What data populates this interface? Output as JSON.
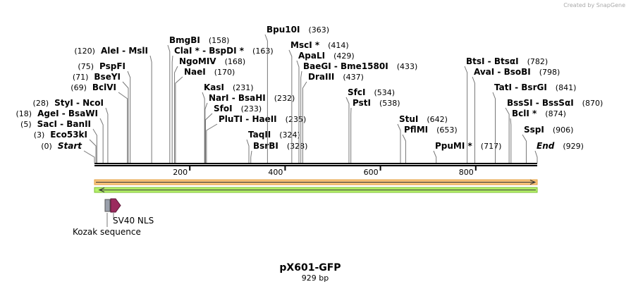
{
  "watermark": "Created by SnapGene",
  "title": "pX601-GFP",
  "subtitle": "929 bp",
  "sequence_length": 929,
  "ruler_ticks": [
    200,
    400,
    600,
    800
  ],
  "sites": [
    {
      "name": "Start",
      "position": 0,
      "position_label": "(0)"
    },
    {
      "name": "Eco53kI",
      "position": 3,
      "position_label": "(3)"
    },
    {
      "name": "SacI  -  BanII",
      "position": 5,
      "position_label": "(5)"
    },
    {
      "name": "AgeI  -  BsaWI",
      "position": 18,
      "position_label": "(18)"
    },
    {
      "name": "StyI  -  NcoI",
      "position": 28,
      "position_label": "(28)"
    },
    {
      "name": "BclVI",
      "position": 69,
      "position_label": "(69)"
    },
    {
      "name": "BseYI",
      "position": 71,
      "position_label": "(71)"
    },
    {
      "name": "PspFI",
      "position": 75,
      "position_label": "(75)"
    },
    {
      "name": "AleI  -  MslI",
      "position": 120,
      "position_label": "(120)"
    },
    {
      "name": "BmgBI",
      "position": 158,
      "position_label": "(158)"
    },
    {
      "name": "ClaI *  -  BspDI *",
      "position": 163,
      "position_label": "(163)"
    },
    {
      "name": "NgoMIV",
      "position": 168,
      "position_label": "(168)"
    },
    {
      "name": "NaeI",
      "position": 170,
      "position_label": "(170)"
    },
    {
      "name": "KasI",
      "position": 231,
      "position_label": "(231)"
    },
    {
      "name": "NarI  -  BsaHI",
      "position": 232,
      "position_label": "(232)"
    },
    {
      "name": "SfoI",
      "position": 233,
      "position_label": "(233)"
    },
    {
      "name": "PluTI  -  HaeII",
      "position": 235,
      "position_label": "(235)"
    },
    {
      "name": "TaqII",
      "position": 324,
      "position_label": "(324)"
    },
    {
      "name": "BsrBI",
      "position": 328,
      "position_label": "(328)"
    },
    {
      "name": "Bpu10I",
      "position": 363,
      "position_label": "(363)"
    },
    {
      "name": "MscI *",
      "position": 414,
      "position_label": "(414)"
    },
    {
      "name": "ApaLI",
      "position": 429,
      "position_label": "(429)"
    },
    {
      "name": "BaeGI  -  Bme1580I",
      "position": 433,
      "position_label": "(433)"
    },
    {
      "name": "DraIII",
      "position": 437,
      "position_label": "(437)"
    },
    {
      "name": "SfcI",
      "position": 534,
      "position_label": "(534)"
    },
    {
      "name": "PstI",
      "position": 538,
      "position_label": "(538)"
    },
    {
      "name": "StuI",
      "position": 642,
      "position_label": "(642)"
    },
    {
      "name": "PflMI",
      "position": 653,
      "position_label": "(653)"
    },
    {
      "name": "PpuMI *",
      "position": 717,
      "position_label": "(717)"
    },
    {
      "name": "BtsI  -  BtsαI",
      "position": 782,
      "position_label": "(782)"
    },
    {
      "name": "AvaI  -  BsoBI",
      "position": 798,
      "position_label": "(798)"
    },
    {
      "name": "TatI  -  BsrGI",
      "position": 841,
      "position_label": "(841)"
    },
    {
      "name": "BssSI  -  BssSαI",
      "position": 870,
      "position_label": "(870)"
    },
    {
      "name": "BclI *",
      "position": 874,
      "position_label": "(874)"
    },
    {
      "name": "SspI",
      "position": 906,
      "position_label": "(906)"
    },
    {
      "name": "End",
      "position": 929,
      "position_label": "(929)"
    }
  ],
  "features": [
    {
      "label": "SV40 NLS"
    },
    {
      "label": "Kozak sequence"
    }
  ]
}
